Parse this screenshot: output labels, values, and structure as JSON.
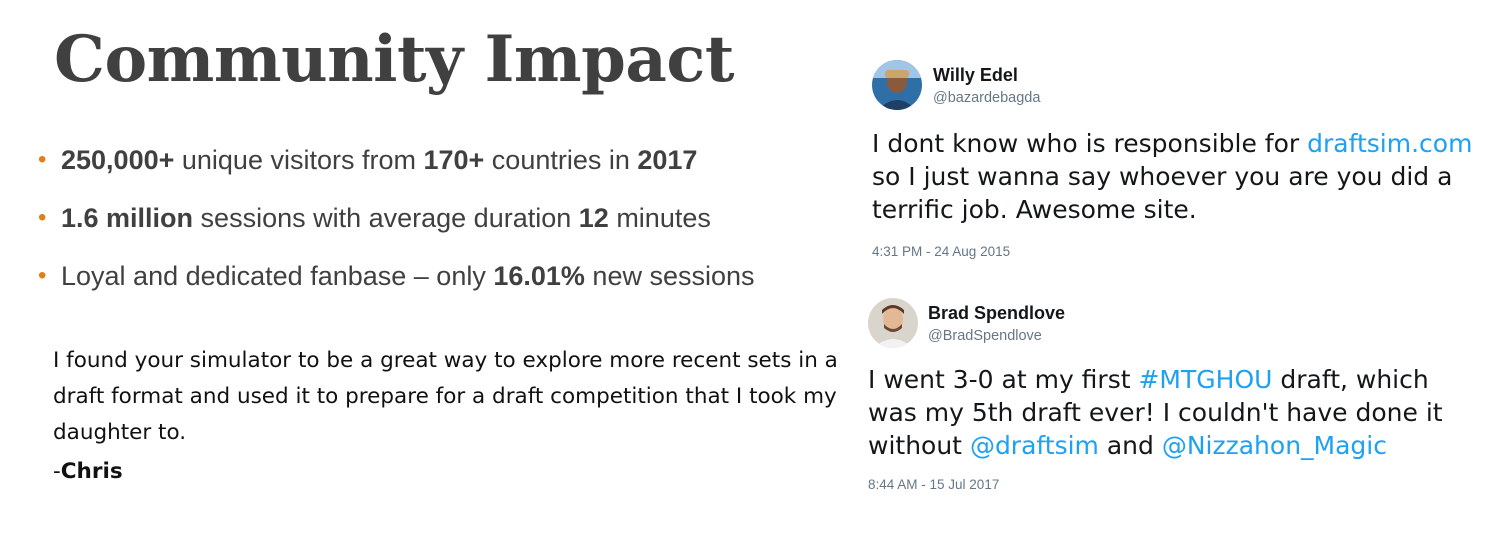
{
  "slide": {
    "title": "Community Impact",
    "bullets": [
      {
        "bold1": "250,000+",
        "text1": " unique visitors from ",
        "bold2": "170+",
        "text2": " countries in ",
        "bold3": "2017"
      },
      {
        "bold1": "1.6 million",
        "text1": " sessions with average duration ",
        "bold2": "12",
        "text2": " minutes"
      },
      {
        "bold1": "Loyal and dedicated fanbase",
        "text1": " – only ",
        "bold2": "16.01%",
        "text2": " new sessions"
      }
    ],
    "quote": {
      "text": "I found your simulator to be a great way to explore more recent sets in a draft format and used it to prepare for a draft competition that I took my daughter to.",
      "dash": "-",
      "name": "Chris"
    }
  },
  "tweets": [
    {
      "name": "Willy Edel",
      "handle": "@bazardebagda",
      "body": {
        "t1": "I dont know who is responsible for ",
        "link1": "draftsim.com",
        "t2": " so I just wanna say whoever you are you did a terrific job. Awesome site."
      },
      "time": "4:31 PM - 24 Aug 2015"
    },
    {
      "name": "Brad Spendlove",
      "handle": "@BradSpendlove",
      "body": {
        "t1": "I went 3-0 at my first ",
        "link1": "#MTGHOU",
        "t2": " draft, which was my 5th draft ever! I couldn't have done it without ",
        "link2": "@draftsim",
        "t3": " and ",
        "link3": "@Nizzahon_Magic"
      },
      "time": "8:44 AM - 15 Jul 2017"
    }
  ],
  "colors": {
    "accent": "#e07f17",
    "link": "#1da1f2",
    "title": "#404040",
    "meta": "#657786"
  },
  "icons": {
    "bullet": "bullet-dot-icon"
  }
}
